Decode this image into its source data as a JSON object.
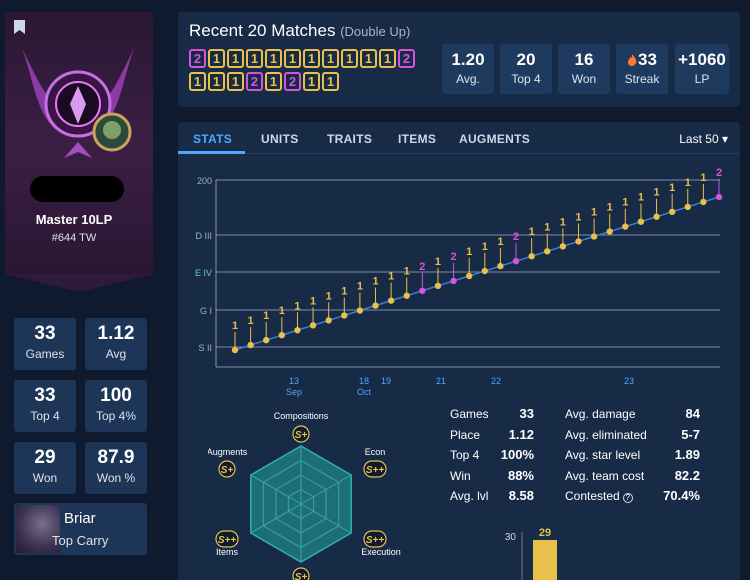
{
  "profile": {
    "rank": "Master 10LP",
    "ladder": "#644 TW",
    "stats": [
      {
        "value": "33",
        "label": "Games"
      },
      {
        "value": "1.12",
        "label": "Avg"
      },
      {
        "value": "33",
        "label": "Top 4"
      },
      {
        "value": "100",
        "label": "Top 4%"
      },
      {
        "value": "29",
        "label": "Won"
      },
      {
        "value": "87.9",
        "label": "Won %"
      }
    ],
    "top_carry": {
      "name": "Briar",
      "role": "Top Carry"
    }
  },
  "recent": {
    "title": "Recent 20 Matches",
    "mode": "(Double Up)",
    "placements": [
      "2",
      "1",
      "1",
      "1",
      "1",
      "1",
      "1",
      "1",
      "1",
      "1",
      "1",
      "2",
      "1",
      "1",
      "1",
      "2",
      "1",
      "2",
      "1",
      "1"
    ],
    "kpis": [
      {
        "value": "1.20",
        "label": "Avg."
      },
      {
        "value": "20",
        "label": "Top 4"
      },
      {
        "value": "16",
        "label": "Won"
      },
      {
        "value": "33",
        "label": "Streak",
        "icon": "flame-icon"
      },
      {
        "value": "+1060",
        "label": "LP"
      }
    ]
  },
  "tabs": [
    "STATS",
    "UNITS",
    "TRAITS",
    "ITEMS",
    "AUGMENTS"
  ],
  "active_tab": "STATS",
  "range_select": "Last 50",
  "colors": {
    "win": "#e8c04a",
    "second": "#d653e0",
    "accent": "#4fa7ff",
    "line": "#3d7fd6"
  },
  "chart_data": {
    "type": "line",
    "y_labels": [
      "200",
      "D III",
      "E IV",
      "G I",
      "S II"
    ],
    "x_ticks": [
      {
        "label": "13",
        "sub": "Sep"
      },
      {
        "label": "18",
        "sub": "Oct"
      },
      {
        "label": "19",
        "sub": ""
      },
      {
        "label": "21",
        "sub": ""
      },
      {
        "label": "22",
        "sub": ""
      },
      {
        "label": "23",
        "sub": ""
      }
    ],
    "placements": [
      "1",
      "1",
      "1",
      "1",
      "1",
      "1",
      "1",
      "1",
      "1",
      "1",
      "1",
      "1",
      "2",
      "1",
      "2",
      "1",
      "1",
      "1",
      "2",
      "1",
      "1",
      "1",
      "1",
      "1",
      "1",
      "1",
      "1",
      "1",
      "1",
      "1",
      "1",
      "2"
    ]
  },
  "radar": {
    "axes": [
      {
        "label": "Compositions",
        "grade": "S+"
      },
      {
        "label": "Econ",
        "grade": "S++"
      },
      {
        "label": "Execution",
        "grade": "S++"
      },
      {
        "label": "",
        "grade": "S+"
      },
      {
        "label": "Items",
        "grade": "S++"
      },
      {
        "label": "Augments",
        "grade": "S+"
      }
    ]
  },
  "detail_stats": {
    "left": [
      {
        "label": "Games",
        "value": "33"
      },
      {
        "label": "Place",
        "value": "1.12"
      },
      {
        "label": "Top 4",
        "value": "100%"
      },
      {
        "label": "Win",
        "value": "88%"
      },
      {
        "label": "Avg. lvl",
        "value": "8.58"
      }
    ],
    "right": [
      {
        "label": "Avg. damage",
        "value": "84"
      },
      {
        "label": "Avg. eliminated",
        "value": "5-7"
      },
      {
        "label": "Avg. star level",
        "value": "1.89"
      },
      {
        "label": "Avg. team cost",
        "value": "82.2"
      },
      {
        "label": "Contested",
        "value": "70.4%"
      }
    ]
  },
  "mini_bar": {
    "axis_label": "30",
    "value": "29"
  }
}
